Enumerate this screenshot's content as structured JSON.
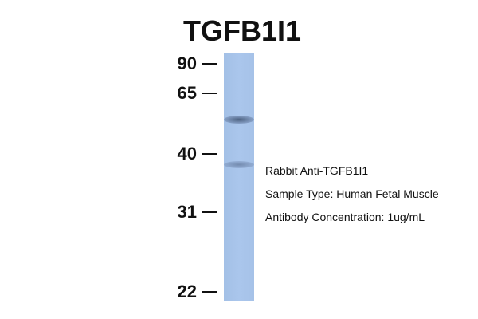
{
  "title": "TGFB1I1",
  "markers": [
    "90",
    "65",
    "40",
    "31",
    "22"
  ],
  "info": {
    "antibody": "Rabbit Anti-TGFB1I1",
    "sample": "Sample Type: Human Fetal Muscle",
    "concentration": "Antibody Concentration: 1ug/mL"
  },
  "colors": {
    "lane": "#a8c4ea",
    "band": "#4a5f82"
  }
}
